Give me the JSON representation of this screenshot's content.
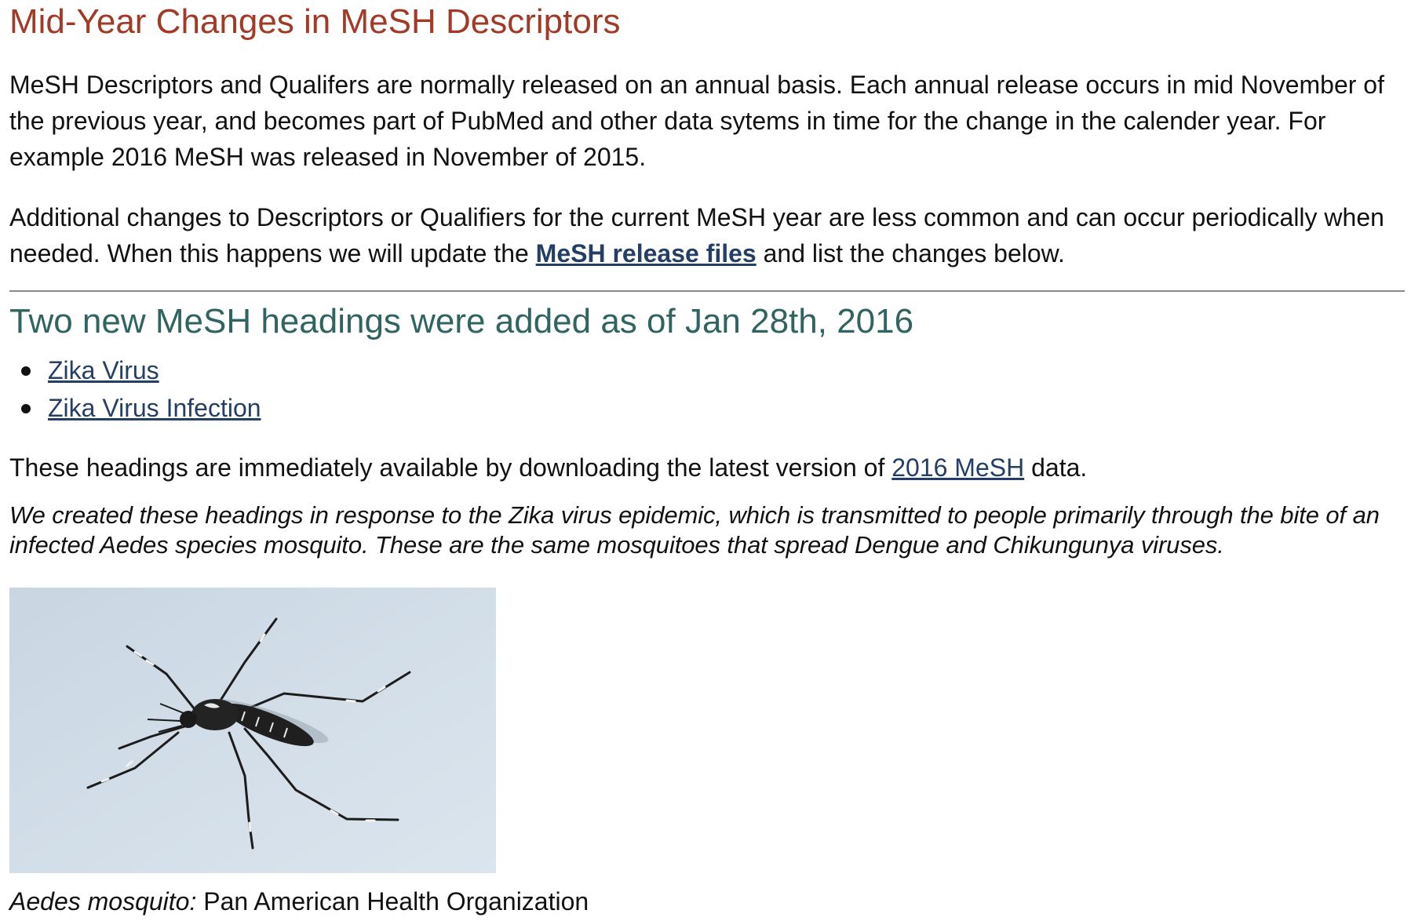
{
  "page": {
    "title": "Mid-Year Changes in MeSH Descriptors",
    "intro": {
      "paragraph1": "MeSH Descriptors and Qualifers are normally released on an annual basis. Each annual release occurs in mid November of the previous year, and becomes part of PubMed and other data sytems in time for the change in the calender year. For example 2016 MeSH was released in November of 2015.",
      "paragraph2_before": "Additional changes to Descriptors or Qualifiers for the current MeSH year are less common and can occur periodically when needed. When this happens we will update the ",
      "paragraph2_link": "MeSH release files",
      "paragraph2_after": " and list the changes below."
    },
    "section": {
      "heading": "Two new MeSH headings were added as of Jan 28th, 2016",
      "items": [
        {
          "label": "Zika Virus"
        },
        {
          "label": "Zika Virus Infection"
        }
      ],
      "availability_before": "These headings are immediately available by downloading the latest version of ",
      "availability_link": "2016 MeSH",
      "availability_after": " data.",
      "note": "We created these headings in response to the Zika virus epidemic, which is transmitted to people primarily through the bite of an infected Aedes species mosquito. These are the same mosquitoes that spread Dengue and Chikungunya viruses."
    },
    "figure": {
      "caption_italic": "Aedes mosquito:",
      "caption_rest": " Pan American Health Organization"
    }
  },
  "colors": {
    "title": "#a13a26",
    "section_heading": "#2f6461",
    "link": "#243f66",
    "image_background": "#d3dee8"
  }
}
